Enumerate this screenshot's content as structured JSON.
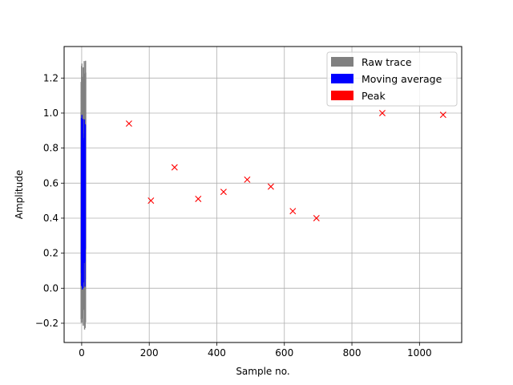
{
  "chart_data": {
    "type": "scatter",
    "xlabel": "Sample no.",
    "ylabel": "Amplitude",
    "xlim": [
      -52,
      1125
    ],
    "ylim": [
      -0.31,
      1.38
    ],
    "xticks": [
      0,
      200,
      400,
      600,
      800,
      1000
    ],
    "yticks": [
      -0.2,
      0.0,
      0.2,
      0.4,
      0.6,
      0.8,
      1.0,
      1.2
    ],
    "xtick_labels": [
      "0",
      "200",
      "400",
      "600",
      "800",
      "1000"
    ],
    "ytick_labels": [
      "−0.2",
      "0.0",
      "0.2",
      "0.4",
      "0.6",
      "0.8",
      "1.0",
      "1.2"
    ],
    "grid": true,
    "legend_position": "top-right",
    "series": [
      {
        "name": "Raw trace",
        "kind": "line",
        "color": "#808080",
        "x_range": [
          -2,
          12
        ],
        "y_range": [
          -0.24,
          1.31
        ]
      },
      {
        "name": "Moving average",
        "kind": "line",
        "color": "#0000ff",
        "x_range": [
          -1,
          11
        ],
        "y_range": [
          -0.01,
          0.99
        ]
      },
      {
        "name": "Peak",
        "kind": "marker",
        "marker": "x",
        "color": "#ff0000",
        "x": [
          140,
          205,
          275,
          345,
          420,
          490,
          560,
          625,
          695,
          890,
          1070
        ],
        "y": [
          0.94,
          0.5,
          0.69,
          0.51,
          0.55,
          0.62,
          0.58,
          0.44,
          0.4,
          1.0,
          0.99
        ]
      }
    ]
  }
}
